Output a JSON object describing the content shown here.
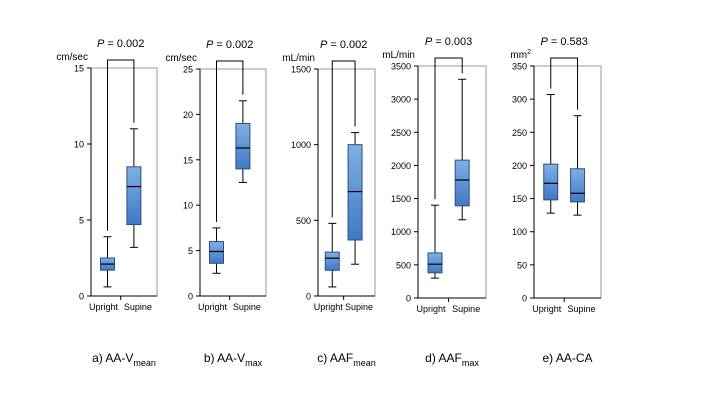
{
  "colors": {
    "box_fill_top": "#7fb0e6",
    "box_fill_bottom": "#3f78c4",
    "box_stroke": "#2f4f7f",
    "axis": "#000000"
  },
  "chart_data": [
    {
      "type": "box",
      "title_prefix": "a) AA-V",
      "title_sub": "mean",
      "p_label": "P",
      "p_value": " = 0.002",
      "ylabel": "cm/sec",
      "ylim": [
        0,
        15
      ],
      "yticks": [
        0,
        5,
        10,
        15
      ],
      "categories": [
        "Upright",
        "Supine"
      ],
      "boxes": [
        {
          "whisker_low": 0.6,
          "q1": 1.7,
          "median": 2.1,
          "q3": 2.5,
          "whisker_high": 3.9
        },
        {
          "whisker_low": 3.2,
          "q1": 4.7,
          "median": 7.2,
          "q3": 8.5,
          "whisker_high": 11.0
        }
      ]
    },
    {
      "type": "box",
      "title_prefix": "b) AA-V",
      "title_sub": "max",
      "p_label": "P",
      "p_value": " = 0.002",
      "ylabel": "cm/sec",
      "ylim": [
        0,
        25
      ],
      "yticks": [
        0,
        5,
        10,
        15,
        20,
        25
      ],
      "categories": [
        "Upright",
        "Supine"
      ],
      "boxes": [
        {
          "whisker_low": 2.5,
          "q1": 3.6,
          "median": 4.9,
          "q3": 6.0,
          "whisker_high": 7.5
        },
        {
          "whisker_low": 12.5,
          "q1": 14.0,
          "median": 16.3,
          "q3": 19.0,
          "whisker_high": 21.5
        }
      ]
    },
    {
      "type": "box",
      "title_prefix": "c) AAF",
      "title_sub": "mean",
      "p_label": "P",
      "p_value": " = 0.002",
      "ylabel": "mL/min",
      "ylim": [
        0,
        1500
      ],
      "yticks": [
        0,
        500,
        1000,
        1500
      ],
      "categories": [
        "Upright",
        "Supine"
      ],
      "boxes": [
        {
          "whisker_low": 60,
          "q1": 170,
          "median": 250,
          "q3": 290,
          "whisker_high": 480
        },
        {
          "whisker_low": 210,
          "q1": 370,
          "median": 690,
          "q3": 1000,
          "whisker_high": 1080
        }
      ]
    },
    {
      "type": "box",
      "title_prefix": "d) AAF",
      "title_sub": "max",
      "p_label": "P",
      "p_value": " = 0.003",
      "ylabel": "mL/min",
      "ylim": [
        0,
        3500
      ],
      "yticks": [
        0,
        500,
        1000,
        1500,
        2000,
        2500,
        3000,
        3500
      ],
      "categories": [
        "Upright",
        "Supine"
      ],
      "boxes": [
        {
          "whisker_low": 300,
          "q1": 380,
          "median": 510,
          "q3": 680,
          "whisker_high": 1400
        },
        {
          "whisker_low": 1180,
          "q1": 1390,
          "median": 1780,
          "q3": 2080,
          "whisker_high": 3300
        }
      ]
    },
    {
      "type": "box",
      "title_prefix": "e) AA-CA",
      "title_sub": "",
      "p_label": "P",
      "p_value": " = 0.583",
      "ylabel": "mm",
      "ylabel_sup": "2",
      "ylim": [
        0,
        350
      ],
      "yticks": [
        0,
        50,
        100,
        150,
        200,
        250,
        300,
        350
      ],
      "categories": [
        "Upright",
        "Supine"
      ],
      "boxes": [
        {
          "whisker_low": 128,
          "q1": 148,
          "median": 173,
          "q3": 202,
          "whisker_high": 307
        },
        {
          "whisker_low": 125,
          "q1": 145,
          "median": 158,
          "q3": 195,
          "whisker_high": 275
        }
      ]
    }
  ]
}
